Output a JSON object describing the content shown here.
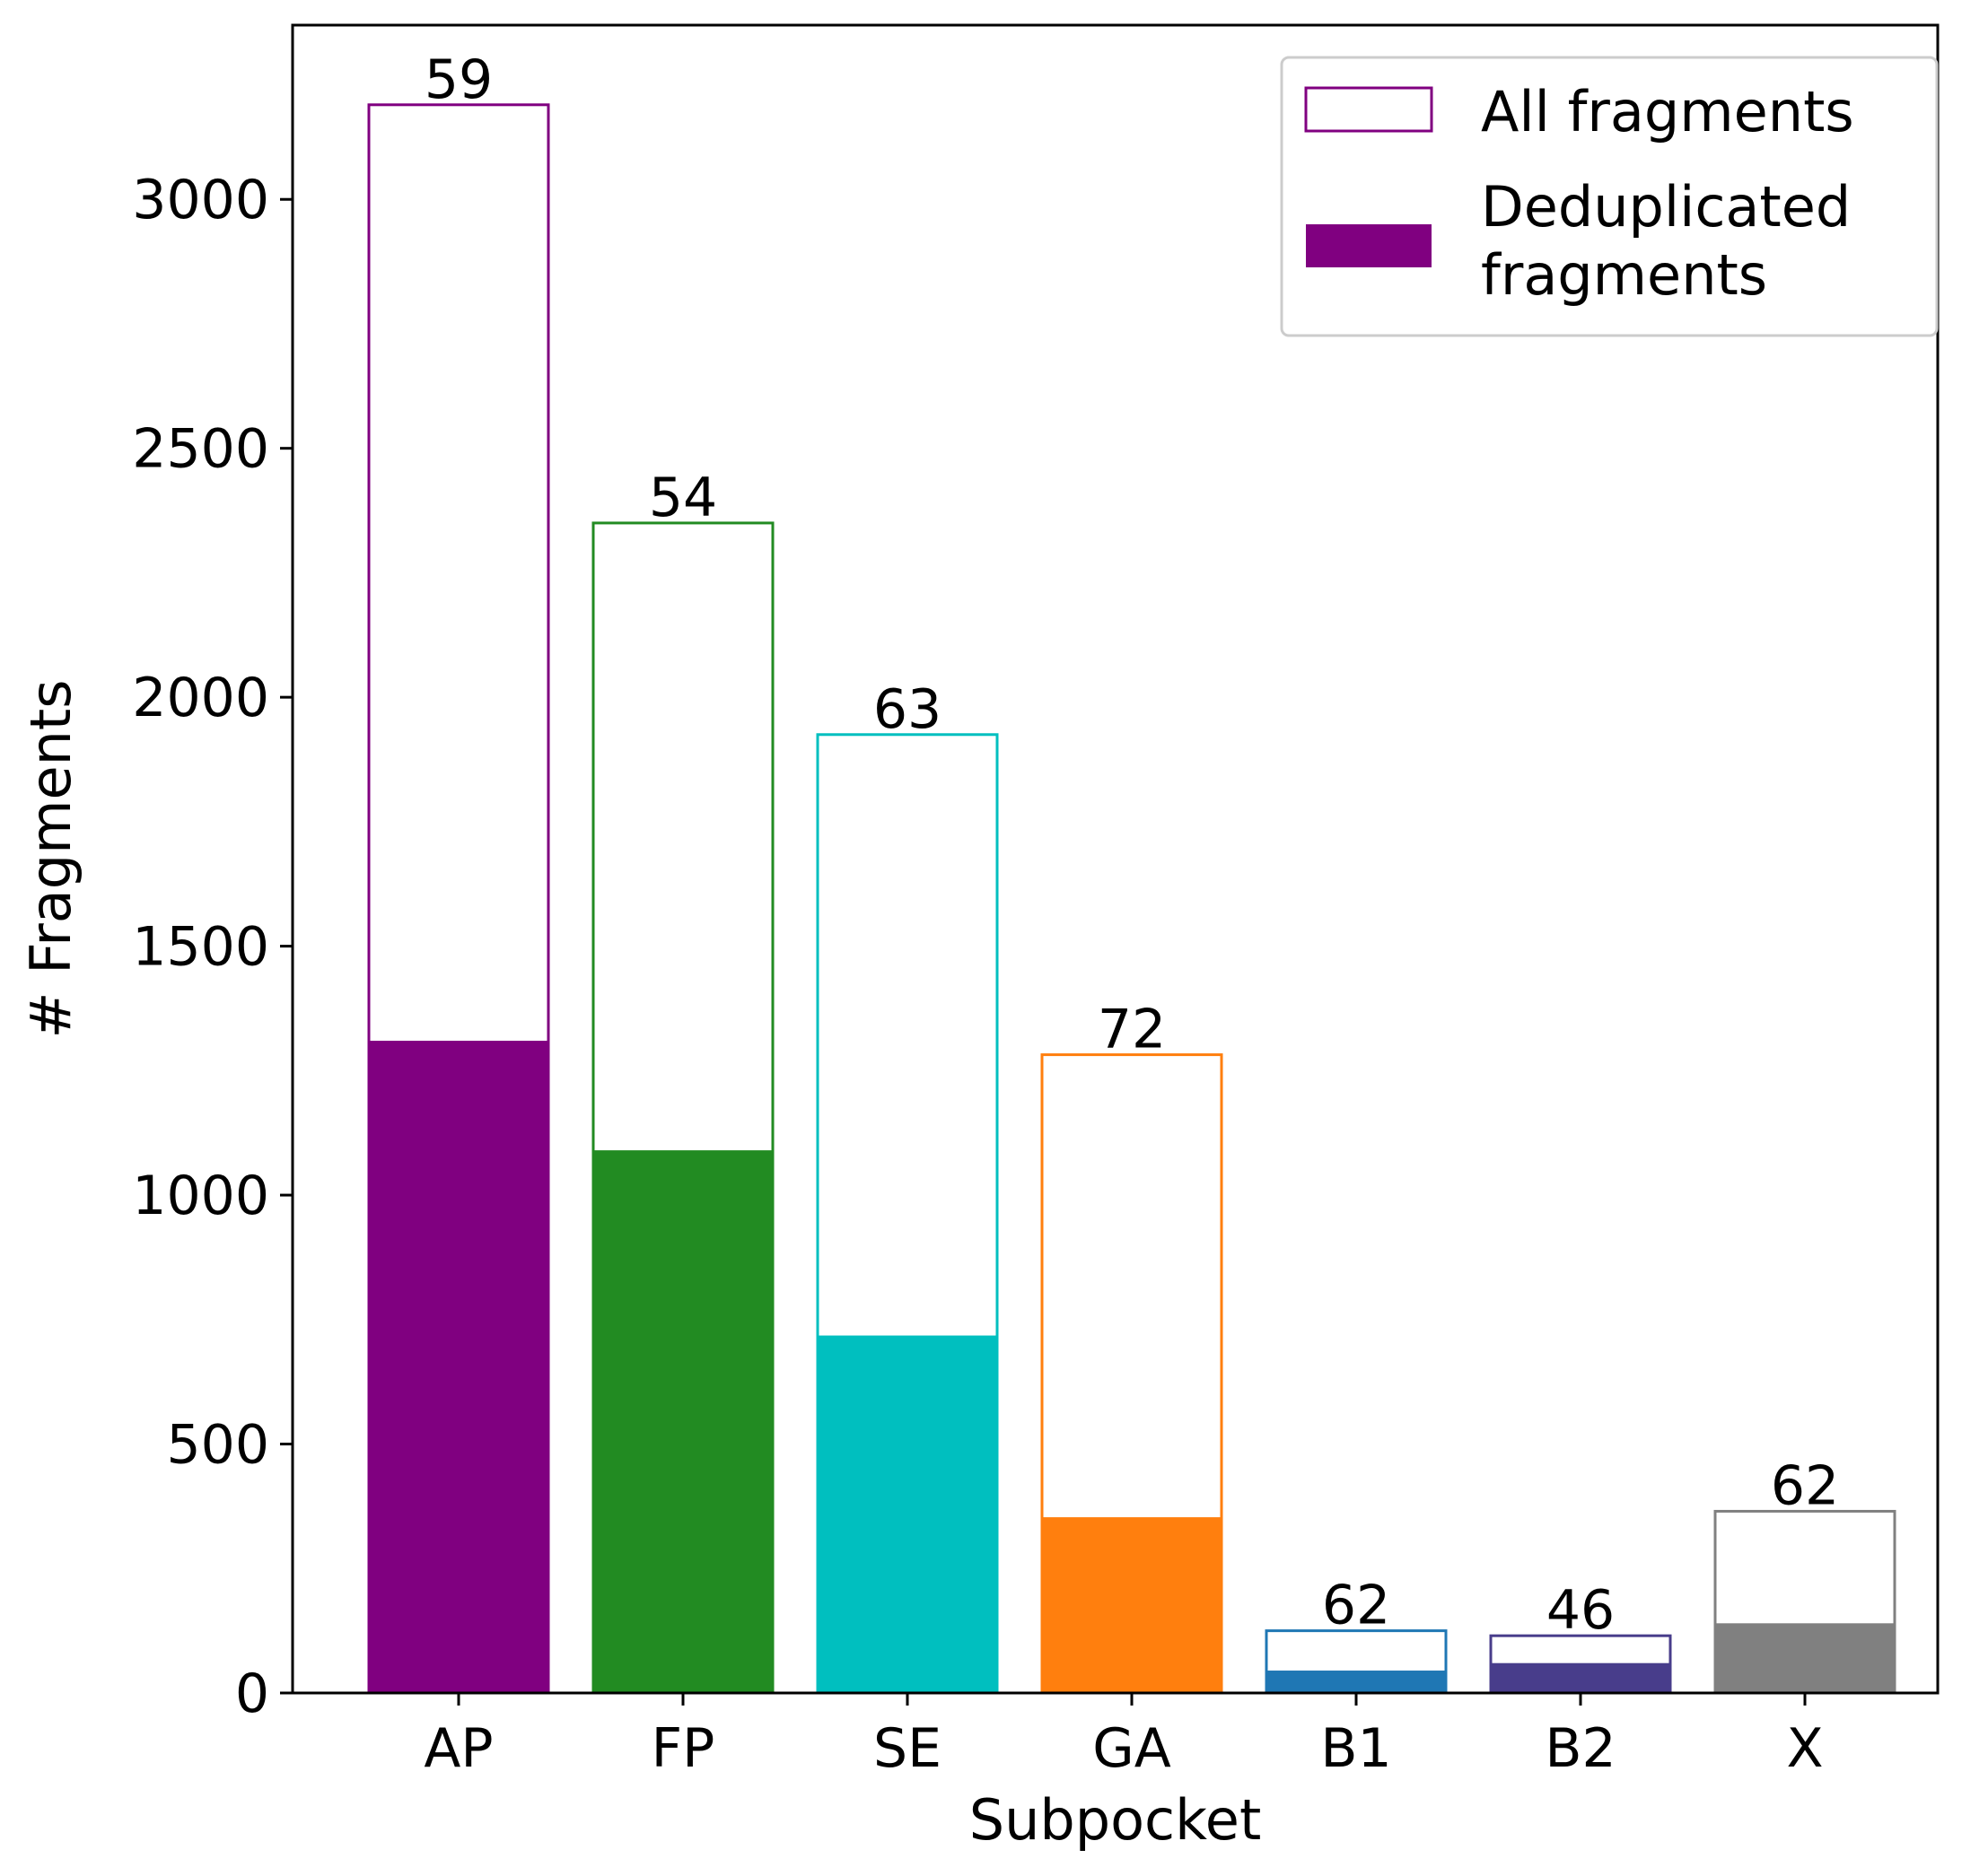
{
  "chart_data": {
    "type": "bar",
    "xlabel": "Subpocket",
    "ylabel": "# Fragments",
    "ylim": [
      0,
      3350
    ],
    "yticks": [
      0,
      500,
      1000,
      1500,
      2000,
      2500,
      3000
    ],
    "grid": false,
    "legend_position": "top-right",
    "categories": [
      "AP",
      "FP",
      "SE",
      "GA",
      "B1",
      "B2",
      "X"
    ],
    "colors": [
      "#800080",
      "#228B22",
      "#00BFBF",
      "#FF7F0E",
      "#1F77B4",
      "#483D8B",
      "#808080"
    ],
    "series": [
      {
        "name": "All fragments",
        "style": "outline",
        "values": [
          3190,
          2350,
          1925,
          1282,
          125,
          115,
          365
        ]
      },
      {
        "name": "Deduplicated fragments",
        "style": "filled",
        "values": [
          1310,
          1090,
          718,
          353,
          45,
          60,
          140
        ]
      }
    ],
    "bar_labels": [
      "59",
      "54",
      "63",
      "72",
      "62",
      "46",
      "62"
    ],
    "legend": {
      "entries": [
        {
          "label": "All fragments",
          "swatch": "outline",
          "color": "#800080"
        },
        {
          "label_lines": [
            "Deduplicated",
            "fragments"
          ],
          "swatch": "filled",
          "color": "#800080"
        }
      ]
    }
  }
}
